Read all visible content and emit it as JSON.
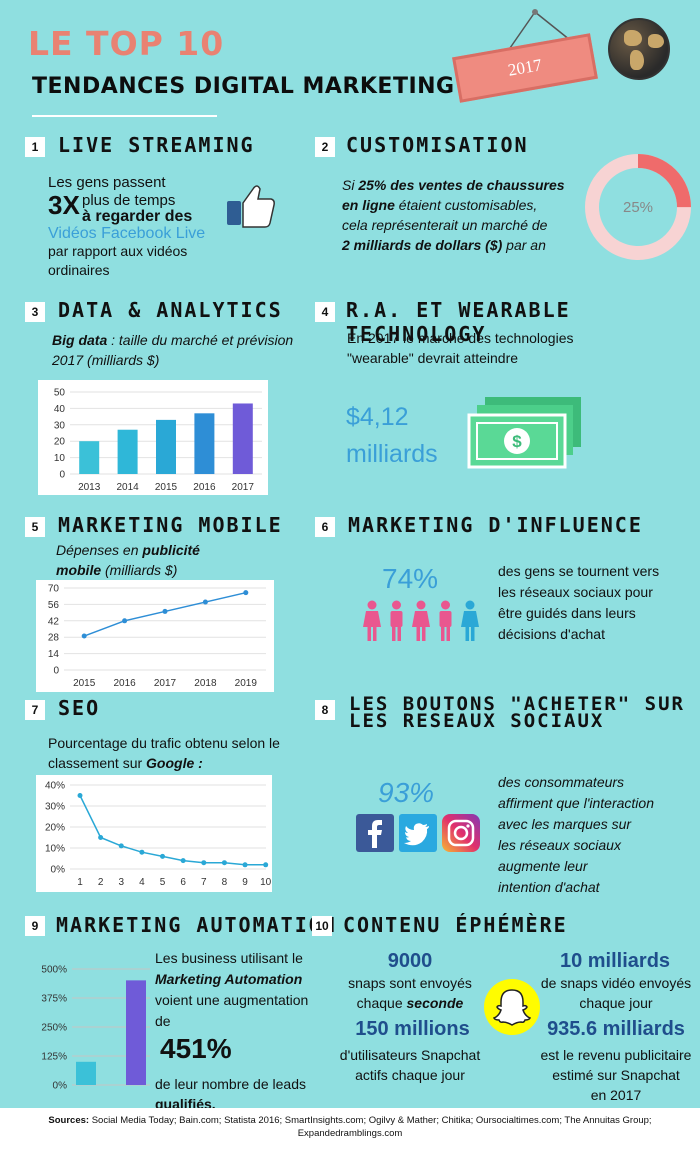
{
  "header": {
    "top_line": "LE TOP 10",
    "main_title": "TENDANCES DIGITAL MARKETING",
    "year_sign": "2017"
  },
  "sections": {
    "s1": {
      "number": "1",
      "title": "LIVE STREAMING",
      "line1": "Les gens passent",
      "big": "3X",
      "line2": "plus de temps",
      "line3": "à regarder des",
      "line4": "Vidéos Facebook Live",
      "line5": "par rapport aux vidéos",
      "line6": "ordinaires",
      "icon": "thumbs-up-icon"
    },
    "s2": {
      "number": "2",
      "title": "CUSTOMISATION",
      "t1_pre": "Si ",
      "t1_bold": "25% des ventes de chaussures",
      "t2_bold": "en ligne",
      "t2_rest": " étaient customisables,",
      "t3": "cela représenterait un marché de",
      "t4_bold": "2 milliards de dollars ($)",
      "t4_rest": " par an",
      "donut_label": "25%",
      "donut_value": 25
    },
    "s3": {
      "number": "3",
      "title": "DATA & ANALYTICS",
      "sub_bold": "Big data",
      "sub_rest": " : taille du marché et prévision",
      "sub_line2": "2017 (milliards $)"
    },
    "s4": {
      "number": "4",
      "title": "R.A. ET WEARABLE TECHNOLOGY",
      "line1": "En 2017 le marché des technologies",
      "line2": "\"wearable\" devrait atteindre",
      "amount": "$4,12",
      "unit": "milliards",
      "icon": "money-bills-icon"
    },
    "s5": {
      "number": "5",
      "title": "MARKETING MOBILE",
      "sub1": "Dépenses en ",
      "sub1_bold": "publicité",
      "sub2_bold": "mobile",
      "sub2_rest": " (milliards $)"
    },
    "s6": {
      "number": "6",
      "title": "MARKETING D'INFLUENCE",
      "percent": "74%",
      "line1": "des gens se tournent vers",
      "line2": "les réseaux sociaux pour",
      "line3": "être guidés dans leurs",
      "line4": "décisions d'achat",
      "people_highlighted": 4,
      "people_total": 5
    },
    "s7": {
      "number": "7",
      "title": "SEO",
      "line1": "Pourcentage du trafic obtenu selon le",
      "line2_pre": "classement sur ",
      "line2_bold": "Google :"
    },
    "s8": {
      "number": "8",
      "title_line1": "LES BOUTONS \"ACHETER\" SUR",
      "title_line2": "LES RESEAUX SOCIAUX",
      "percent": "93%",
      "line1": "des consommateurs",
      "line2": "affirment que l'interaction",
      "line3": "avec les marques sur",
      "line4": "les réseaux sociaux",
      "line5": "augmente leur",
      "line6": "intention d'achat"
    },
    "s9": {
      "number": "9",
      "title": "MARKETING AUTOMATION",
      "line1": "Les business utilisant le",
      "line2_bold": "Marketing Automation",
      "line3": "voient une augmentation",
      "line4": "de",
      "big": "451%",
      "line5": "de leur nombre de leads",
      "line6": "qualifiés."
    },
    "s10": {
      "number": "10",
      "title": "CONTENU ÉPHÉMÈRE",
      "a_value": "9000",
      "a_line1": "snaps sont envoyés",
      "a_line2_pre": "chaque ",
      "a_line2_bold": "seconde",
      "b_value": "10 milliards",
      "b_line1": "de snaps vidéo envoyés",
      "b_line2": "chaque jour",
      "c_value": "150 millions",
      "c_line1": "d'utilisateurs Snapchat",
      "c_line2": "actifs chaque jour",
      "d_value": "935.6 milliards",
      "d_line1": "est le revenu publicitaire",
      "d_line2": "estimé sur Snapchat",
      "d_line3": "en 2017"
    }
  },
  "sources": {
    "label": "Sources:",
    "text": " Social Media Today; Bain.com; Statista 2016;  SmartInsights.com; Ogilvy & Mather; Chitika; Oursocialtimes.com; The Annuitas Group; Expandedramblings.com"
  },
  "colors": {
    "background": "#8fdfe0",
    "title_accent": "#e98272",
    "blue_text": "#3a9fd8",
    "navy_text": "#1f4e8c",
    "pink": "#e9578f",
    "donut": "#ef6b6b"
  },
  "chart_data": [
    {
      "id": "big-data",
      "type": "bar",
      "categories": [
        "2013",
        "2014",
        "2015",
        "2016",
        "2017"
      ],
      "values": [
        20,
        27,
        33,
        37,
        43
      ],
      "ylim": [
        0,
        50
      ],
      "yticks": [
        "0",
        "10",
        "20",
        "30",
        "40",
        "50"
      ]
    },
    {
      "id": "mobile",
      "type": "line",
      "categories": [
        "2015",
        "2016",
        "2017",
        "2018",
        "2019"
      ],
      "values": [
        29,
        42,
        50,
        58,
        66
      ],
      "ylim": [
        0,
        70
      ],
      "yticks": [
        "0",
        "14",
        "28",
        "42",
        "56",
        "70"
      ]
    },
    {
      "id": "seo",
      "type": "line",
      "categories": [
        "1",
        "2",
        "3",
        "4",
        "5",
        "6",
        "7",
        "8",
        "9",
        "10"
      ],
      "values": [
        35,
        15,
        11,
        8,
        6,
        4,
        3,
        3,
        2,
        2
      ],
      "ylim": [
        0,
        40
      ],
      "yticks": [
        "0%",
        "10%",
        "20%",
        "30%",
        "40%"
      ]
    },
    {
      "id": "automation",
      "type": "bar",
      "categories": [
        "",
        ""
      ],
      "values": [
        100,
        451
      ],
      "ylim": [
        0,
        500
      ],
      "yticks": [
        "0%",
        "125%",
        "250%",
        "375%",
        "500%"
      ]
    }
  ]
}
